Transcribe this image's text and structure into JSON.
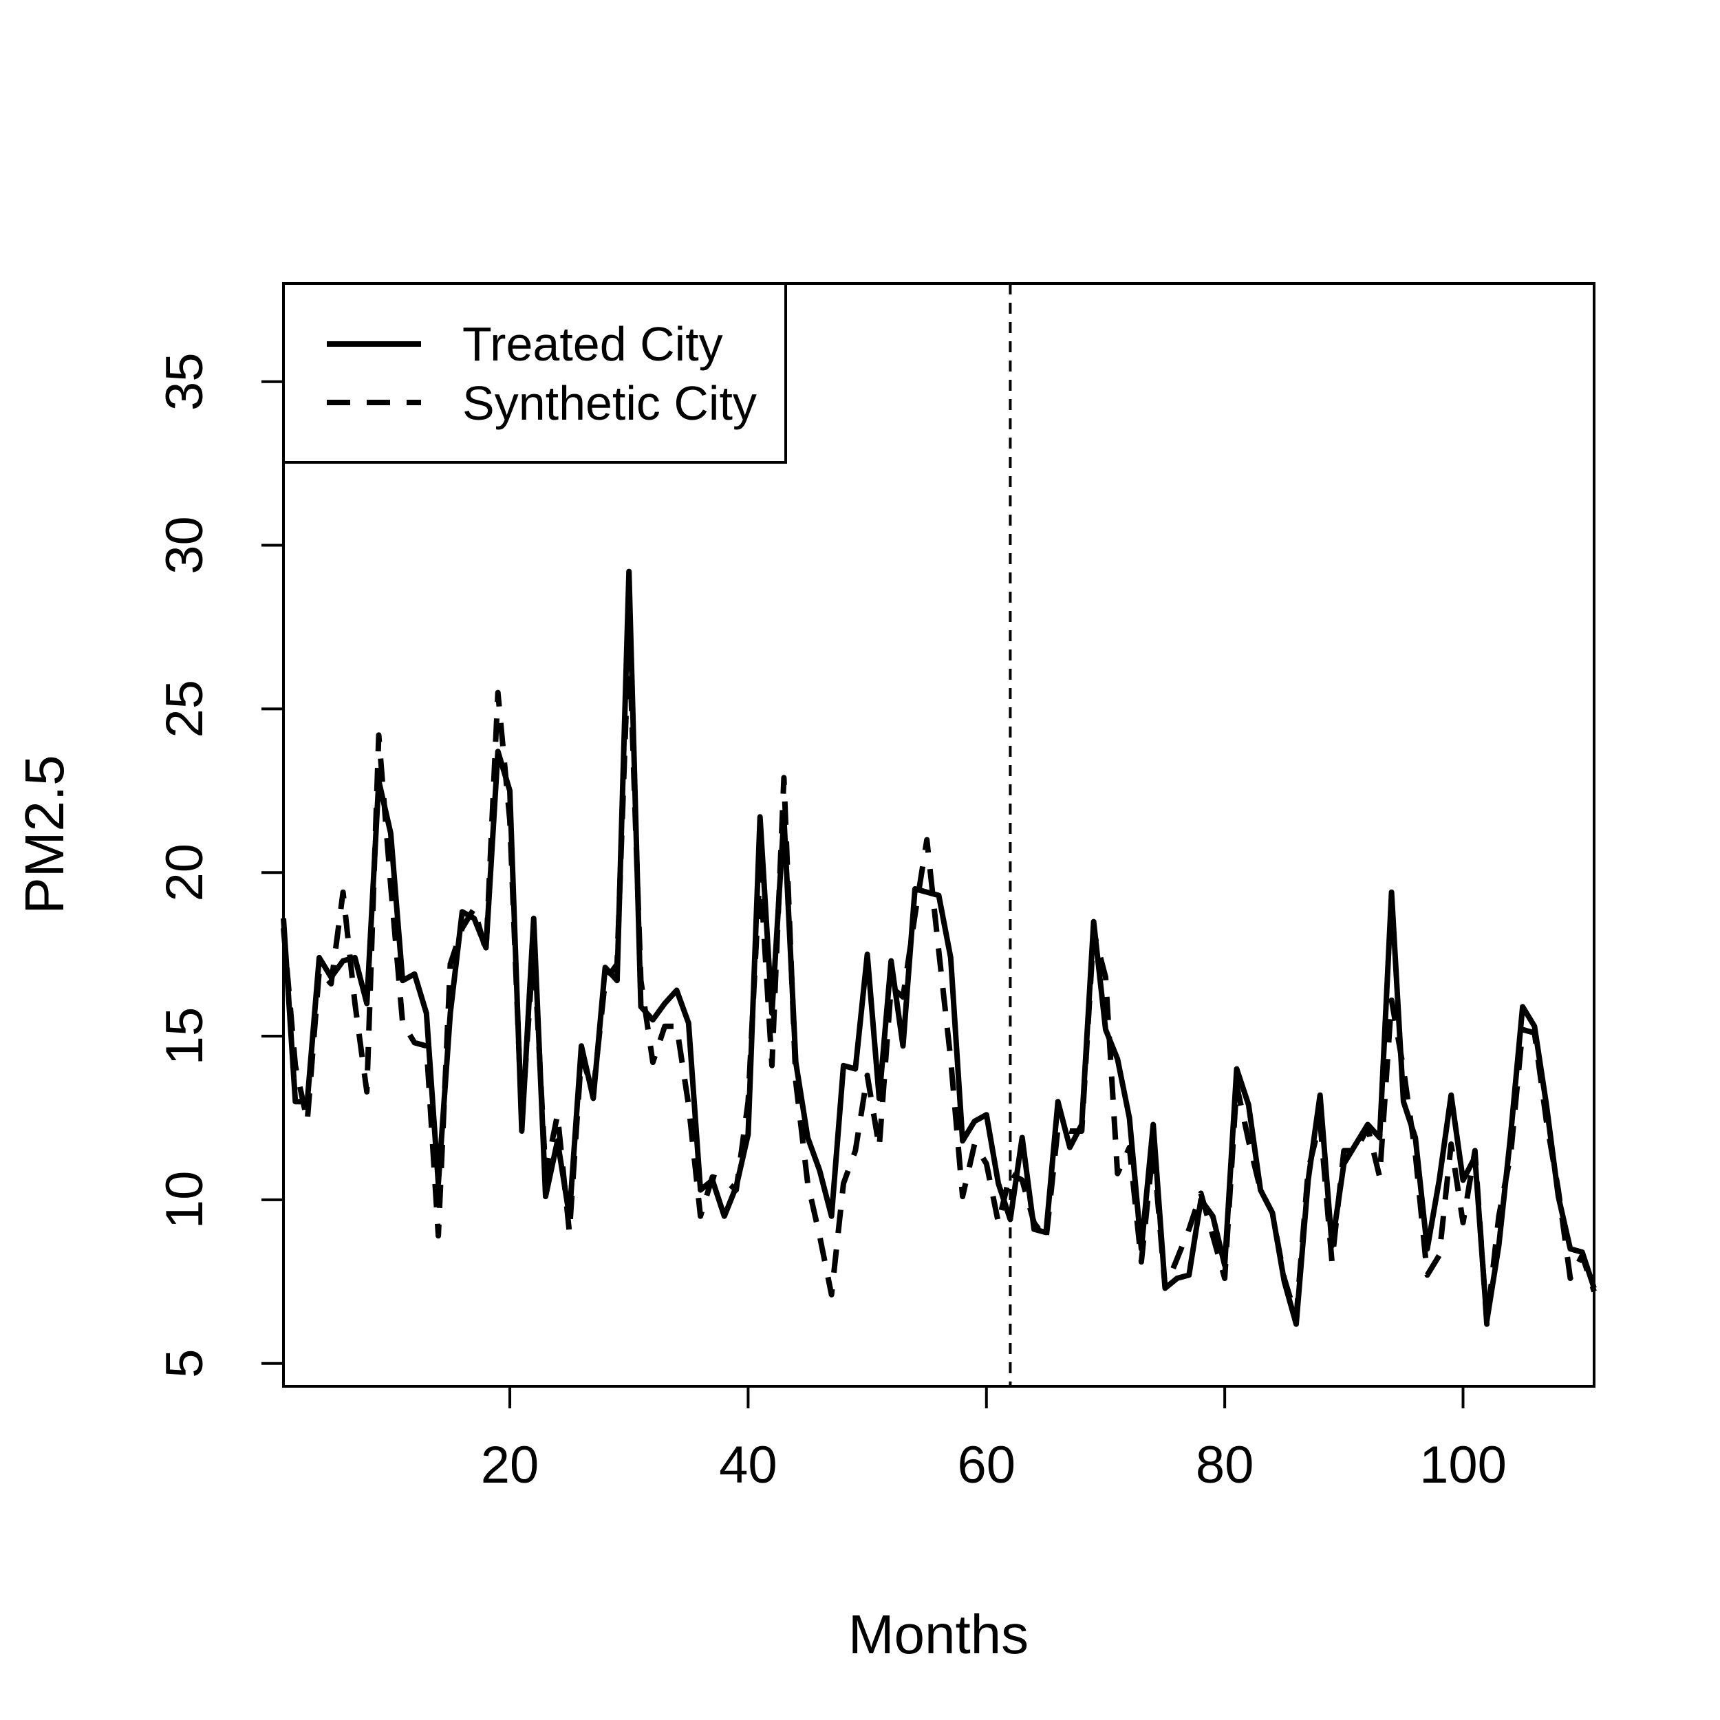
{
  "chart_data": {
    "type": "line",
    "title": "",
    "xlabel": "Months",
    "ylabel": "PM2.5",
    "xlim": [
      1,
      111
    ],
    "ylim": [
      4.3,
      38
    ],
    "x_ticks": [
      20,
      40,
      60,
      80,
      100
    ],
    "y_ticks": [
      5,
      10,
      15,
      20,
      25,
      30,
      35
    ],
    "intervention_month": 62,
    "legend": {
      "placement": "top-left",
      "entries": [
        "Treated City",
        "Synthetic City"
      ]
    },
    "series": [
      {
        "name": "Treated City",
        "line_style": "solid",
        "color": "#000000",
        "x": [
          1,
          2,
          3,
          4,
          5,
          6,
          7,
          8,
          9,
          10,
          11,
          12,
          13,
          14,
          15,
          16,
          17,
          18,
          19,
          20,
          21,
          22,
          23,
          24,
          25,
          26,
          27,
          28,
          29,
          30,
          31,
          32,
          33,
          34,
          35,
          36,
          37,
          38,
          39,
          40,
          41,
          42,
          43,
          44,
          45,
          46,
          47,
          48,
          49,
          50,
          51,
          52,
          53,
          54,
          55,
          56,
          57,
          58,
          59,
          60,
          61,
          62,
          63,
          64,
          65,
          66,
          67,
          68,
          69,
          70,
          71,
          72,
          73,
          74,
          75,
          76,
          77,
          78,
          79,
          80,
          81,
          82,
          83,
          84,
          85,
          86,
          87,
          88,
          89,
          90,
          91,
          92,
          93,
          94,
          95,
          96,
          97,
          98,
          99,
          100,
          101,
          102,
          103,
          104,
          105,
          106,
          107,
          108,
          109,
          110,
          111
        ],
        "values": [
          18.6,
          13.0,
          13.0,
          17.4,
          16.8,
          17.3,
          17.4,
          16.0,
          22.8,
          21.2,
          16.7,
          16.9,
          15.7,
          10.5,
          15.7,
          18.8,
          18.6,
          17.7,
          23.7,
          22.5,
          12.1,
          18.6,
          10.1,
          11.8,
          9.5,
          14.7,
          13.1,
          17.1,
          16.7,
          29.2,
          15.9,
          15.5,
          16.0,
          16.4,
          15.4,
          10.3,
          10.6,
          9.5,
          10.4,
          12.0,
          21.7,
          15.7,
          21.7,
          14.2,
          11.9,
          10.9,
          9.5,
          14.1,
          14.0,
          17.5,
          13.1,
          17.3,
          14.7,
          19.5,
          19.4,
          19.3,
          17.4,
          11.8,
          12.4,
          12.6,
          10.5,
          9.4,
          11.9,
          9.1,
          9.0,
          13.0,
          11.6,
          12.3,
          18.5,
          15.2,
          14.3,
          12.5,
          8.5,
          12.3,
          7.3,
          7.6,
          7.7,
          10.0,
          9.5,
          8.0,
          14.0,
          12.9,
          10.3,
          9.6,
          7.5,
          6.2,
          10.6,
          13.2,
          8.6,
          11.1,
          11.7,
          12.3,
          11.9,
          19.4,
          13.0,
          11.9,
          8.5,
          10.6,
          13.2,
          10.6,
          11.3,
          6.3,
          8.6,
          12.0,
          15.9,
          15.3,
          12.9,
          10.1,
          8.5,
          8.4,
          7.3
        ]
      },
      {
        "name": "Synthetic City",
        "line_style": "dashed",
        "color": "#000000",
        "x": [
          1,
          2,
          3,
          4,
          5,
          6,
          7,
          8,
          9,
          10,
          11,
          12,
          13,
          14,
          15,
          16,
          17,
          18,
          19,
          20,
          21,
          22,
          23,
          24,
          25,
          26,
          27,
          28,
          29,
          30,
          31,
          32,
          33,
          34,
          35,
          36,
          37,
          38,
          39,
          40,
          41,
          42,
          43,
          44,
          45,
          46,
          47,
          48,
          49,
          50,
          51,
          52,
          53,
          54,
          55,
          56,
          57,
          58,
          59,
          60,
          61,
          62,
          63,
          64,
          65,
          66,
          67,
          68,
          69,
          70,
          71,
          72,
          73,
          74,
          75,
          76,
          77,
          78,
          79,
          80,
          81,
          82,
          83,
          84,
          85,
          86,
          87,
          88,
          89,
          90,
          91,
          92,
          93,
          94,
          95,
          96,
          97,
          98,
          99,
          100,
          101,
          102,
          103,
          104,
          105,
          106,
          107,
          108,
          109,
          110,
          111
        ],
        "values": [
          18.3,
          14.1,
          12.4,
          17.0,
          16.6,
          19.4,
          16.0,
          13.3,
          24.2,
          19.6,
          15.4,
          14.8,
          14.7,
          8.9,
          17.2,
          18.3,
          18.9,
          17.6,
          25.5,
          21.6,
          12.4,
          17.8,
          10.8,
          12.6,
          9.0,
          14.4,
          13.3,
          16.7,
          17.2,
          27.3,
          16.7,
          14.2,
          15.3,
          15.3,
          12.9,
          9.5,
          10.7,
          10.6,
          10.3,
          13.0,
          20.1,
          14.1,
          22.9,
          13.6,
          10.5,
          8.9,
          7.1,
          10.5,
          11.5,
          13.8,
          11.6,
          16.5,
          16.2,
          18.7,
          21.0,
          17.6,
          14.3,
          10.1,
          11.7,
          11.1,
          9.3,
          10.8,
          10.6,
          9.3,
          8.8,
          12.2,
          12.1,
          12.1,
          18.2,
          16.8,
          10.8,
          11.6,
          8.1,
          11.6,
          7.3,
          8.2,
          9.1,
          10.2,
          8.9,
          7.6,
          13.5,
          11.8,
          10.3,
          9.6,
          7.6,
          6.4,
          10.9,
          12.4,
          8.1,
          11.5,
          11.5,
          12.2,
          10.7,
          16.1,
          14.0,
          11.4,
          7.7,
          8.3,
          11.7,
          9.3,
          11.5,
          6.2,
          9.5,
          11.4,
          15.2,
          15.1,
          12.4,
          10.3,
          7.6,
          8.3,
          7.2
        ]
      }
    ]
  }
}
